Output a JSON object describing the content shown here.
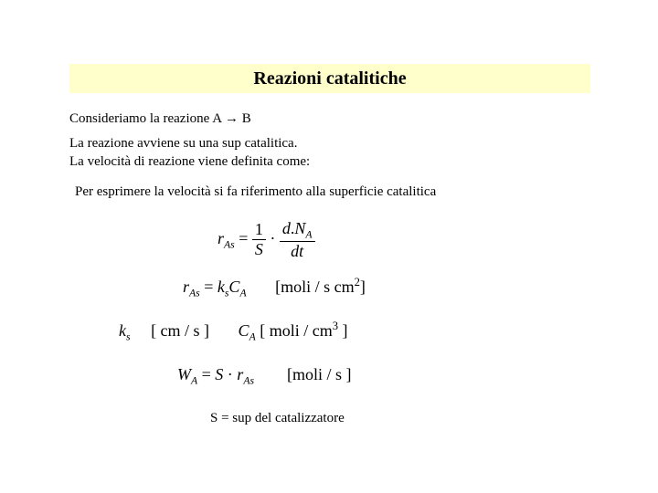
{
  "title": "Reazioni catalitiche",
  "line1_pre": "Consideriamo la reazione    A ",
  "line1_post": " B",
  "line2a": "La reazione avviene su una sup catalitica.",
  "line2b": "La velocità di reazione viene definita come:",
  "line3": "Per esprimere la velocità si fa riferimento alla superficie catalitica",
  "eq1": {
    "lhs_var": "r",
    "lhs_sub": "As",
    "frac1_num": "1",
    "frac1_den": "S",
    "dot": "·",
    "frac2_num_pre": "d",
    "frac2_num_post": "N",
    "frac2_num_sub": "A",
    "frac2_den": "dt"
  },
  "eq2": {
    "lhs_var": "r",
    "lhs_sub": "As",
    "k": "k",
    "k_sub": "s",
    "C": "C",
    "C_sub": "A",
    "unit_pre": "[moli / s cm",
    "unit_sup": "2",
    "unit_post": "]"
  },
  "eq3": {
    "k": "k",
    "k_sub": "s",
    "k_unit": "[ cm / s ]",
    "C": "C",
    "C_sub": "A",
    "C_unit_pre": "[ moli / cm",
    "C_unit_sup": "3",
    "C_unit_post": " ]"
  },
  "eq4": {
    "W": "W",
    "W_sub": "A",
    "S": "S",
    "dot": "·",
    "r": "r",
    "r_sub": "As",
    "unit": "[moli / s ]"
  },
  "footnote": "S = sup del catalizzatore",
  "colors": {
    "title_bg": "#ffffcc",
    "text": "#000000",
    "bg": "#ffffff"
  }
}
